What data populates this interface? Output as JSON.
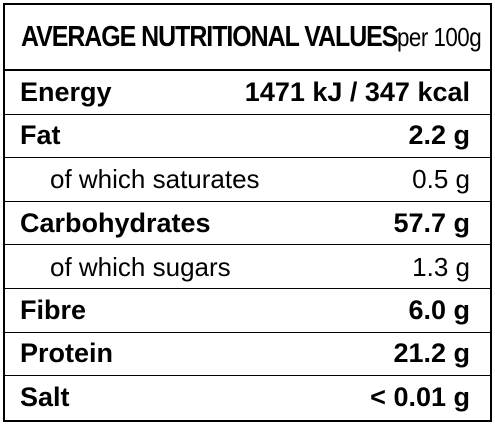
{
  "title": {
    "main": "AVERAGE NUTRITIONAL VALUES",
    "sub": "per 100g"
  },
  "rows": [
    {
      "label": "Energy",
      "value": "1471 kJ / 347 kcal",
      "style": "bold"
    },
    {
      "label": "Fat",
      "value": "2.2 g",
      "style": "bold"
    },
    {
      "label": "of which saturates",
      "value": "0.5 g",
      "style": "sub"
    },
    {
      "label": "Carbohydrates",
      "value": "57.7 g",
      "style": "bold"
    },
    {
      "label": "of which sugars",
      "value": "1.3 g",
      "style": "sub"
    },
    {
      "label": "Fibre",
      "value": "6.0 g",
      "style": "bold"
    },
    {
      "label": "Protein",
      "value": "21.2 g",
      "style": "bold"
    },
    {
      "label": "Salt",
      "value": "< 0.01 g",
      "style": "bold"
    }
  ]
}
